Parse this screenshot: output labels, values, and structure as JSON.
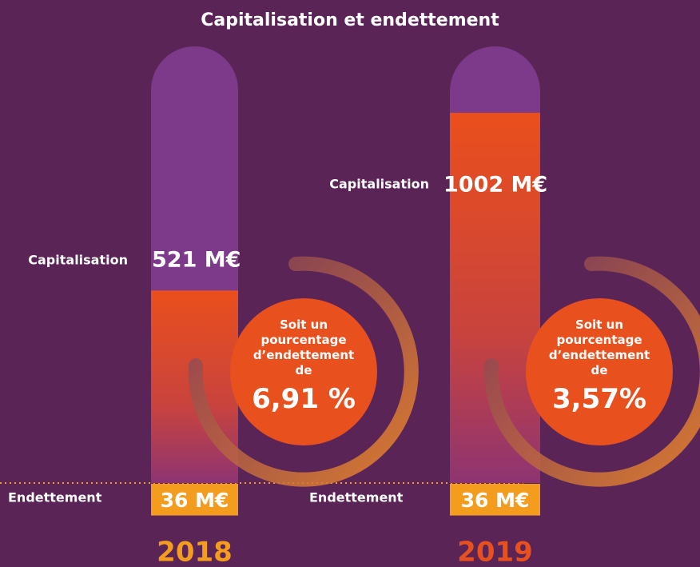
{
  "chart_data": {
    "type": "bar",
    "title": "Capitalisation et endettement",
    "categories": [
      "2018",
      "2019"
    ],
    "series": [
      {
        "name": "Capitalisation",
        "color": "#e8501e",
        "values": [
          521,
          1002
        ],
        "value_labels": [
          "521 M€",
          "1002 M€"
        ]
      },
      {
        "name": "Endettement",
        "color": "#f39c1e",
        "values": [
          36,
          36
        ],
        "value_labels": [
          "36 M€",
          "36 M€"
        ]
      }
    ],
    "ratio": {
      "text": "Soit un pourcentage d’endettement de",
      "values": [
        6.91,
        3.57
      ],
      "value_labels": [
        "6,91 %",
        "3,57%"
      ]
    }
  }
}
